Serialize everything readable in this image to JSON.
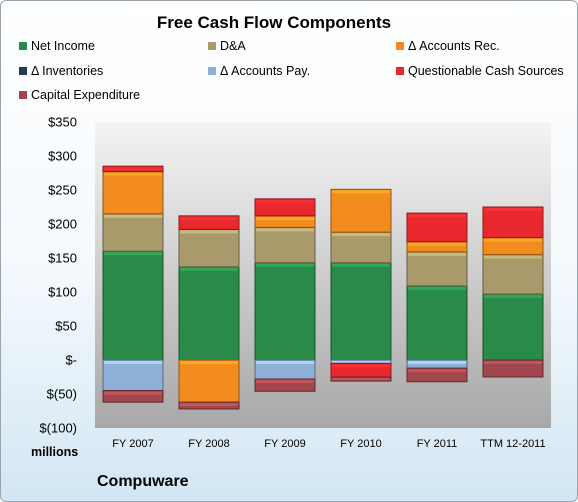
{
  "chart_data": {
    "type": "bar",
    "stacked": true,
    "title": "Free Cash Flow Components",
    "categories": [
      "FY 2007",
      "FY 2008",
      "FY 2009",
      "FY 2010",
      "FY 2011",
      "TTM 12-2011"
    ],
    "series": [
      {
        "name": "Net Income",
        "color": "#2a8a4a",
        "values": [
          160,
          137,
          143,
          143,
          109,
          97
        ]
      },
      {
        "name": "D&A",
        "color": "#a89a6a",
        "values": [
          55,
          55,
          52,
          45,
          50,
          58
        ]
      },
      {
        "name": "Δ Accounts Rec.",
        "color": "#f28c1e",
        "values": [
          62,
          -62,
          17,
          63,
          15,
          25
        ]
      },
      {
        "name": "Δ Inventories",
        "color": "#243a56",
        "values": [
          0,
          0,
          0,
          0,
          0,
          0
        ]
      },
      {
        "name": "Δ Accounts Pay.",
        "color": "#8fb0d6",
        "values": [
          -45,
          0,
          -28,
          -5,
          -12,
          0
        ]
      },
      {
        "name": "Questionable Cash Sources",
        "color": "#e8282d",
        "values": [
          8,
          20,
          25,
          -20,
          42,
          45
        ]
      },
      {
        "name": "Capital Expenditure",
        "color": "#a0464c",
        "values": [
          -17,
          -10,
          -18,
          -6,
          -20,
          -25
        ]
      }
    ],
    "ylim": [
      -100,
      350
    ],
    "yticks": [
      -100,
      -50,
      0,
      50,
      100,
      150,
      200,
      250,
      300,
      350
    ],
    "ytick_labels": [
      "$(100)",
      "$(50)",
      "$-",
      "$50",
      "$100",
      "$150",
      "$200",
      "$250",
      "$300",
      "$350"
    ],
    "units_label": "millions",
    "grid": false,
    "legend_position": "top"
  },
  "company": "Compuware"
}
